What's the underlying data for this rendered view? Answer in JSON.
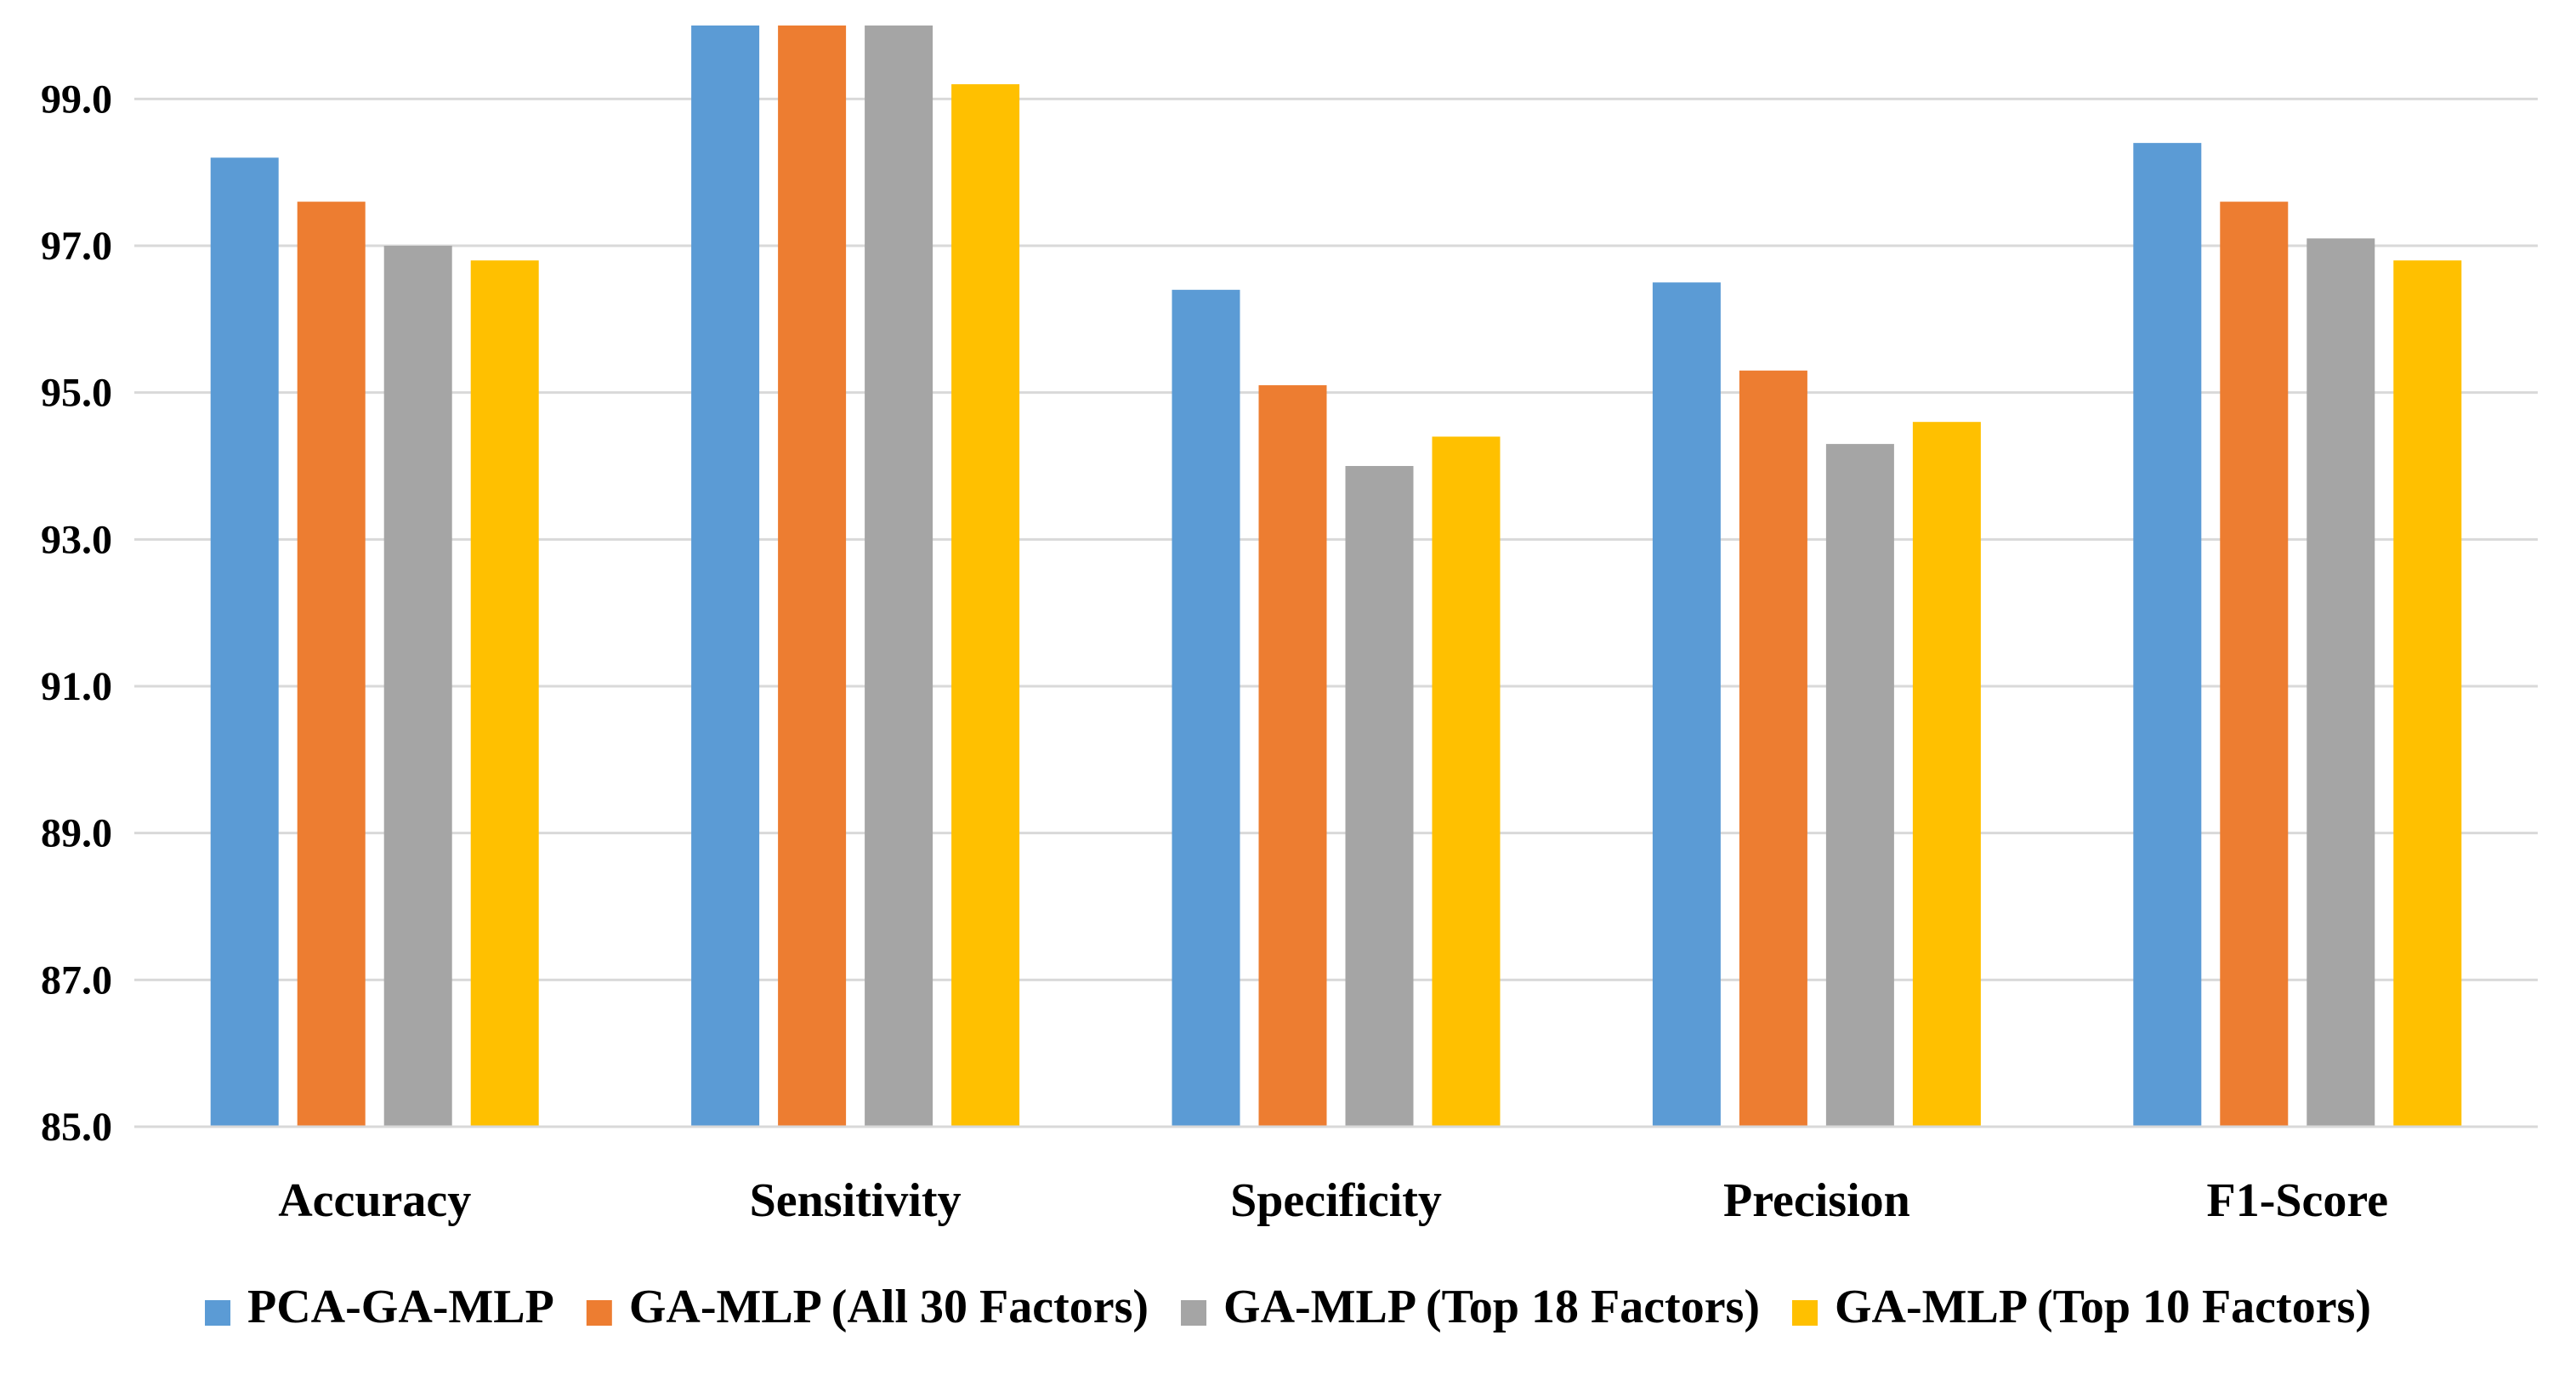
{
  "chart_data": {
    "type": "bar",
    "title": "",
    "xlabel": "",
    "ylabel": "",
    "ylim": [
      85,
      100
    ],
    "yticks": [
      85,
      87,
      89,
      91,
      93,
      95,
      97,
      99
    ],
    "ytick_labels": [
      "85.0",
      "87.0",
      "89.0",
      "91.0",
      "93.0",
      "95.0",
      "97.0",
      "99.0"
    ],
    "categories": [
      "Accuracy",
      "Sensitivity",
      "Specificity",
      "Precision",
      "F1-Score"
    ],
    "series": [
      {
        "name": "PCA-GA-MLP",
        "color": "#5B9BD5",
        "values": [
          98.2,
          100.0,
          96.4,
          96.5,
          98.4
        ]
      },
      {
        "name": "GA-MLP (All 30 Factors)",
        "color": "#ED7D31",
        "values": [
          97.6,
          100.0,
          95.1,
          95.3,
          97.6
        ]
      },
      {
        "name": "GA-MLP (Top 18 Factors)",
        "color": "#A5A5A5",
        "values": [
          97.0,
          100.0,
          94.0,
          94.3,
          97.1
        ]
      },
      {
        "name": "GA-MLP (Top 10 Factors)",
        "color": "#FFC000",
        "values": [
          96.8,
          99.2,
          94.4,
          94.6,
          96.8
        ]
      }
    ],
    "grid": true,
    "legend_position": "bottom"
  }
}
